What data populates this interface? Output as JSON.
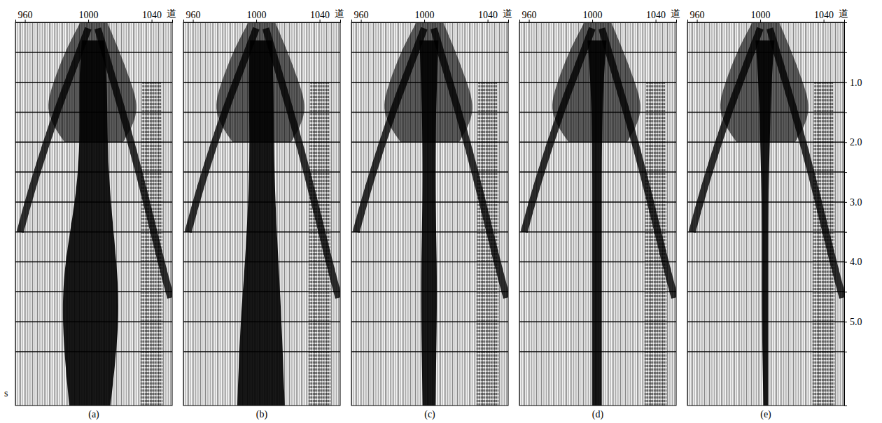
{
  "chart_data": {
    "type": "seismic_gather",
    "x_label": "道",
    "y_label": "s",
    "xlim": [
      954,
      1053
    ],
    "xticks": [
      960,
      1000,
      1040
    ],
    "ylim": [
      0,
      6.4
    ],
    "yticks": [
      {
        "value": 0.5,
        "label": null
      },
      {
        "value": 1,
        "label": "1.0"
      },
      {
        "value": 1.5,
        "label": null
      },
      {
        "value": 2,
        "label": "2.0"
      },
      {
        "value": 2.5,
        "label": null
      },
      {
        "value": 3,
        "label": "3.0"
      },
      {
        "value": 3.5,
        "label": null
      },
      {
        "value": 4,
        "label": "4.0"
      },
      {
        "value": 4.5,
        "label": null
      },
      {
        "value": 5,
        "label": "5.0"
      },
      {
        "value": 5.5,
        "label": null
      }
    ],
    "grid": true,
    "fan": {
      "t": [
        0.0,
        0.5,
        1.0,
        1.5,
        2.0
      ],
      "left": [
        995,
        985,
        978,
        972,
        985
      ],
      "right": [
        1012,
        1020,
        1027,
        1033,
        1022
      ]
    },
    "linear_events": [
      {
        "x": [
          1000,
          990,
          980,
          970,
          962,
          957
        ],
        "t": [
          0.1,
          0.8,
          1.5,
          2.3,
          3.0,
          3.5
        ]
      },
      {
        "x": [
          1006,
          1015,
          1025,
          1035,
          1045,
          1052
        ],
        "t": [
          0.1,
          0.9,
          1.8,
          2.8,
          3.9,
          4.6
        ]
      }
    ],
    "reflection_band": {
      "t": [
        1.0,
        3.0,
        6.4
      ],
      "left": [
        1034,
        1033,
        1033
      ],
      "right": [
        1046,
        1047,
        1047
      ]
    },
    "panels": [
      {
        "label": "(a)",
        "central_band": {
          "t": [
            0.3,
            1,
            2,
            3,
            4,
            5,
            6.4
          ],
          "left": [
            996,
            994,
            995,
            992,
            985,
            983,
            988
          ],
          "right": [
            1010,
            1012,
            1012,
            1014,
            1018,
            1020,
            1014
          ]
        }
      },
      {
        "label": "(b)",
        "central_band": {
          "t": [
            0.3,
            1,
            2,
            3,
            4,
            5,
            6.4
          ],
          "left": [
            996,
            995,
            996,
            995,
            993,
            990,
            988
          ],
          "right": [
            1010,
            1011,
            1011,
            1012,
            1014,
            1016,
            1018
          ]
        }
      },
      {
        "label": "(c)",
        "central_band": {
          "t": [
            0.3,
            1,
            2,
            3,
            4,
            5,
            6.4
          ],
          "left": [
            997,
            998,
            999,
            999,
            998,
            998,
            999
          ],
          "right": [
            1009,
            1008,
            1007,
            1007,
            1008,
            1008,
            1007
          ]
        }
      },
      {
        "label": "(d)",
        "central_band": {
          "t": [
            0.3,
            1,
            2,
            3,
            4,
            5,
            6.4
          ],
          "left": [
            997,
            999,
            1000,
            1000,
            1000,
            1000,
            1000
          ],
          "right": [
            1009,
            1007,
            1006,
            1006,
            1006,
            1006,
            1006
          ]
        }
      },
      {
        "label": "(e)",
        "central_band": {
          "t": [
            0.3,
            1,
            2,
            3,
            4,
            5,
            6.4
          ],
          "left": [
            997,
            999,
            1000,
            1001,
            1001,
            1001,
            1002
          ],
          "right": [
            1009,
            1007,
            1006,
            1005,
            1005,
            1005,
            1005
          ]
        }
      }
    ]
  }
}
